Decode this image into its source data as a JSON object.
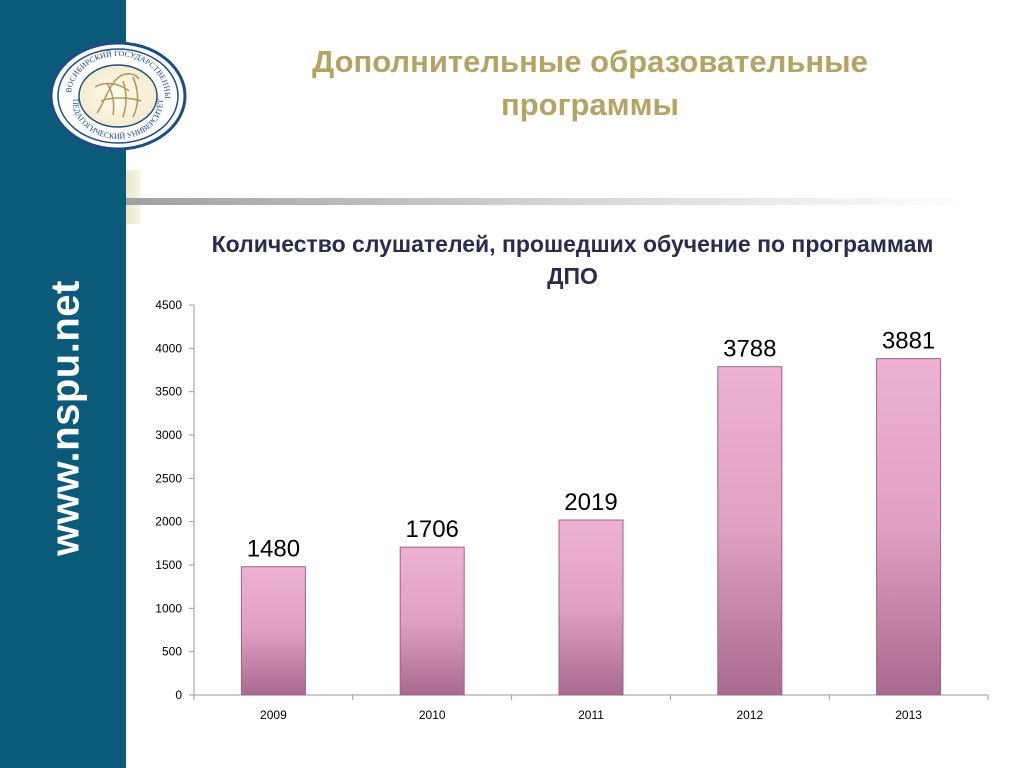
{
  "sidebar": {
    "url": "www.nspu.net"
  },
  "logo": {
    "top_text": "НОВОСИБИРСКИЙ ГОСУДАРСТВЕННЫЙ",
    "bottom_text": "ПЕДАГОГИЧЕСКИЙ УНИВЕРСИТЕТ"
  },
  "slide": {
    "title": "Дополнительные образовательные программы"
  },
  "chart_data": {
    "type": "bar",
    "title": "Количество слушателей, прошедших обучение по программам ДПО",
    "categories": [
      "2009",
      "2010",
      "2011",
      "2012",
      "2013"
    ],
    "values": [
      1480,
      1706,
      2019,
      3788,
      3881
    ],
    "ylim": [
      0,
      4500
    ],
    "yticks": [
      0,
      500,
      1000,
      1500,
      2000,
      2500,
      3000,
      3500,
      4000,
      4500
    ],
    "data_labels": true,
    "legend": "none",
    "grid": false,
    "bar_color": "#e8a6c8"
  }
}
